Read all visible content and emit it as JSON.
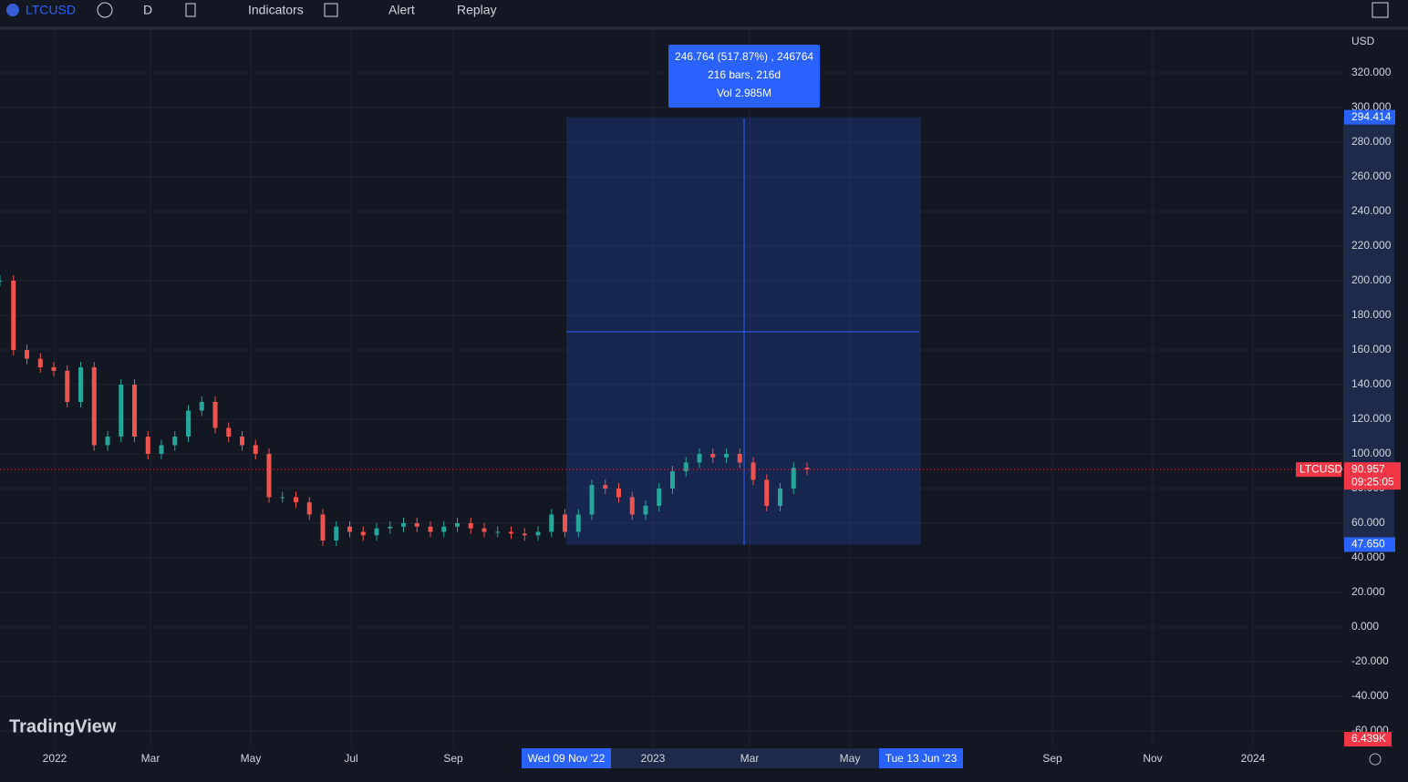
{
  "toolbar": {
    "symbol": "LTCUSD",
    "interval": "D",
    "indicators": "Indicators",
    "alert": "Alert",
    "replay": "Replay"
  },
  "price_axis": {
    "currency": "USD",
    "ticks": [
      {
        "value": 320,
        "label": "320.000"
      },
      {
        "value": 300,
        "label": "300.000"
      },
      {
        "value": 280,
        "label": "280.000"
      },
      {
        "value": 260,
        "label": "260.000"
      },
      {
        "value": 240,
        "label": "240.000"
      },
      {
        "value": 220,
        "label": "220.000"
      },
      {
        "value": 200,
        "label": "200.000"
      },
      {
        "value": 180,
        "label": "180.000"
      },
      {
        "value": 160,
        "label": "160.000"
      },
      {
        "value": 140,
        "label": "140.000"
      },
      {
        "value": 120,
        "label": "120.000"
      },
      {
        "value": 100,
        "label": "100.000"
      },
      {
        "value": 80,
        "label": "80.000"
      },
      {
        "value": 60,
        "label": "60.000"
      },
      {
        "value": 40,
        "label": "40.000"
      },
      {
        "value": 20,
        "label": "20.000"
      },
      {
        "value": 0,
        "label": "0.000"
      },
      {
        "value": -20,
        "label": "-20.000"
      },
      {
        "value": -40,
        "label": "-40.000"
      },
      {
        "value": -60,
        "label": "-60.000"
      }
    ],
    "range_top": {
      "value": 294.414,
      "label": "294.414"
    },
    "range_bottom": {
      "value": 47.65,
      "label": "47.650"
    },
    "last": {
      "symbol": "LTCUSD",
      "value": 90.957,
      "label": "90.957",
      "countdown": "09:25:05"
    },
    "volume": "6.439K"
  },
  "time_axis": {
    "labels": [
      "2022",
      "Mar",
      "May",
      "Jul",
      "Sep",
      "2023",
      "Mar",
      "May",
      "Sep",
      "Nov",
      "2024"
    ],
    "range_start": "Wed 09 Nov '22",
    "range_end": "Tue 13 Jun '23"
  },
  "measure": {
    "line1": "246.764 (517.87%) , 246764",
    "line2": "216 bars, 216d",
    "line3": "Vol 2.985M"
  },
  "price_path": [
    200,
    160,
    155,
    150,
    148,
    130,
    150,
    105,
    110,
    140,
    110,
    100,
    105,
    110,
    125,
    130,
    115,
    110,
    105,
    100,
    75,
    75,
    72,
    65,
    50,
    58,
    55,
    53,
    57,
    58,
    60,
    58,
    55,
    58,
    60,
    57,
    55,
    55,
    54,
    53,
    55,
    65,
    55,
    65,
    82,
    80,
    75,
    65,
    70,
    80,
    90,
    95,
    100,
    98,
    100,
    95,
    85,
    70,
    80,
    92,
    91
  ],
  "watermark": "TradingView"
}
